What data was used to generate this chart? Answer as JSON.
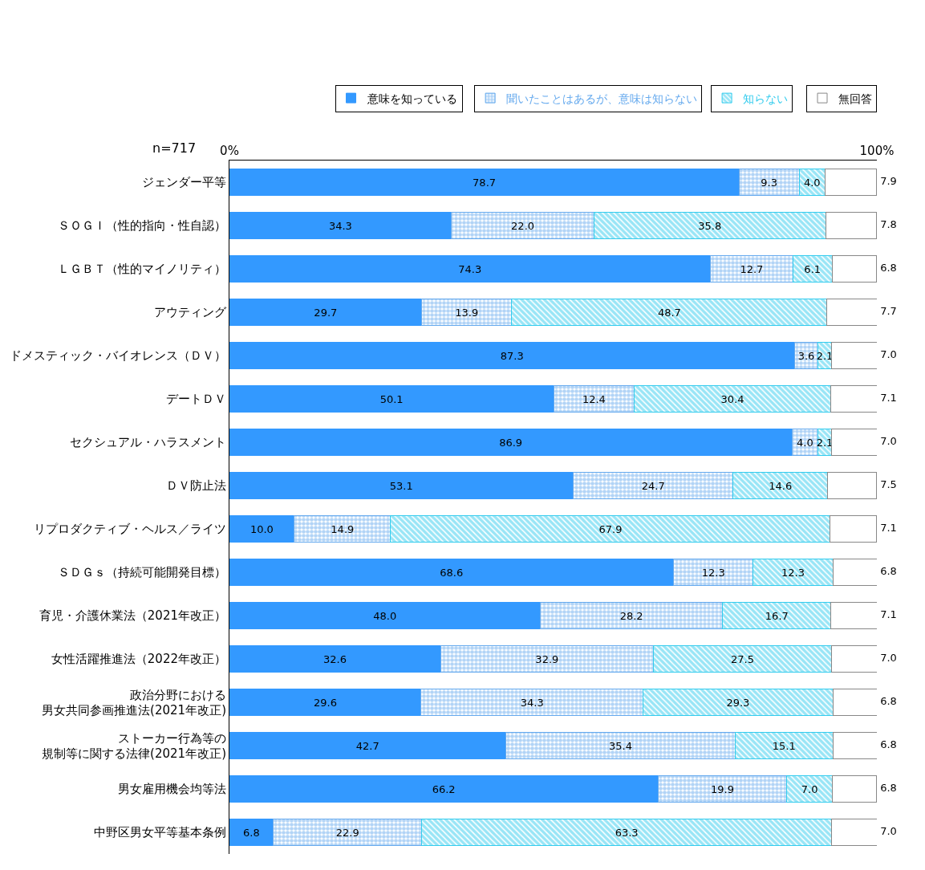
{
  "chart_data": {
    "type": "bar",
    "orientation": "horizontal",
    "stacked": true,
    "legend": "top",
    "annotations": [
      "n=717"
    ],
    "xlim": [
      0,
      100
    ],
    "xticks": [
      {
        "value": 0,
        "label": "0%"
      },
      {
        "value": 100,
        "label": "100%"
      }
    ],
    "categories": [
      "ジェンダー平等",
      "ＳＯＧＩ（性的指向・性自認）",
      "ＬＧＢＴ（性的マイノリティ）",
      "アウティング",
      "ドメスティック・バイオレンス（ＤＶ）",
      "デートＤＶ",
      "セクシュアル・ハラスメント",
      "ＤＶ防止法",
      "リプロダクティブ・ヘルス／ライツ",
      "ＳＤＧｓ（持続可能開発目標）",
      "育児・介護休業法（2021年改正）",
      "女性活躍推進法（2022年改正）",
      "政治分野における男女共同参画推進法(2021年改正)",
      "ストーカー行為等の規制等に関する法律(2021年改正)",
      "男女雇用機会均等法",
      "中野区男女平等基本条例"
    ],
    "series": [
      {
        "name": "意味を知っている",
        "color": "#3399ff",
        "values": [
          78.7,
          34.3,
          74.3,
          29.7,
          87.3,
          50.1,
          86.9,
          53.1,
          10.0,
          68.6,
          48.0,
          32.6,
          29.6,
          42.7,
          66.2,
          6.8
        ],
        "value_labels": [
          "78.7",
          "34.3",
          "74.3",
          "29.7",
          "87.3",
          "50.1",
          "86.9",
          "53.1",
          "10.0",
          "68.6",
          "48.0",
          "32.6",
          "29.6",
          "42.7",
          "66.2",
          "6.8"
        ]
      },
      {
        "name": "聞いたことはあるが、意味は知らない",
        "color": "#66aaee",
        "values": [
          9.3,
          22.0,
          12.7,
          13.9,
          3.6,
          12.4,
          4.0,
          24.7,
          14.9,
          12.3,
          28.2,
          32.9,
          34.3,
          35.4,
          19.9,
          22.9
        ],
        "value_labels": [
          "9.3",
          "22.0",
          "12.7",
          "13.9",
          "3.6",
          "12.4",
          "4.0",
          "24.7",
          "14.9",
          "12.3",
          "28.2",
          "32.9",
          "34.3",
          "35.4",
          "19.9",
          "22.9"
        ]
      },
      {
        "name": "知らない",
        "color": "#33ccee",
        "values": [
          4.0,
          35.8,
          6.1,
          48.7,
          2.1,
          30.4,
          2.1,
          14.6,
          67.9,
          12.3,
          16.7,
          27.5,
          29.3,
          15.1,
          7.0,
          63.3
        ],
        "value_labels": [
          "4.0",
          "35.8",
          "6.1",
          "48.7",
          "2.1",
          "30.4",
          "2.1",
          "14.6",
          "67.9",
          "12.3",
          "16.7",
          "27.5",
          "29.3",
          "15.1",
          "7.0",
          "63.3"
        ]
      },
      {
        "name": "無回答",
        "color": "#ffffff",
        "values": [
          7.9,
          7.8,
          6.8,
          7.7,
          7.0,
          7.1,
          7.0,
          7.5,
          7.1,
          6.8,
          7.1,
          7.0,
          6.8,
          6.8,
          6.8,
          7.0
        ],
        "value_labels": [
          "7.9",
          "7.8",
          "6.8",
          "7.7",
          "7.0",
          "7.1",
          "7.0",
          "7.5",
          "7.1",
          "6.8",
          "7.1",
          "7.0",
          "6.8",
          "6.8",
          "6.8",
          "7.0"
        ]
      }
    ]
  }
}
